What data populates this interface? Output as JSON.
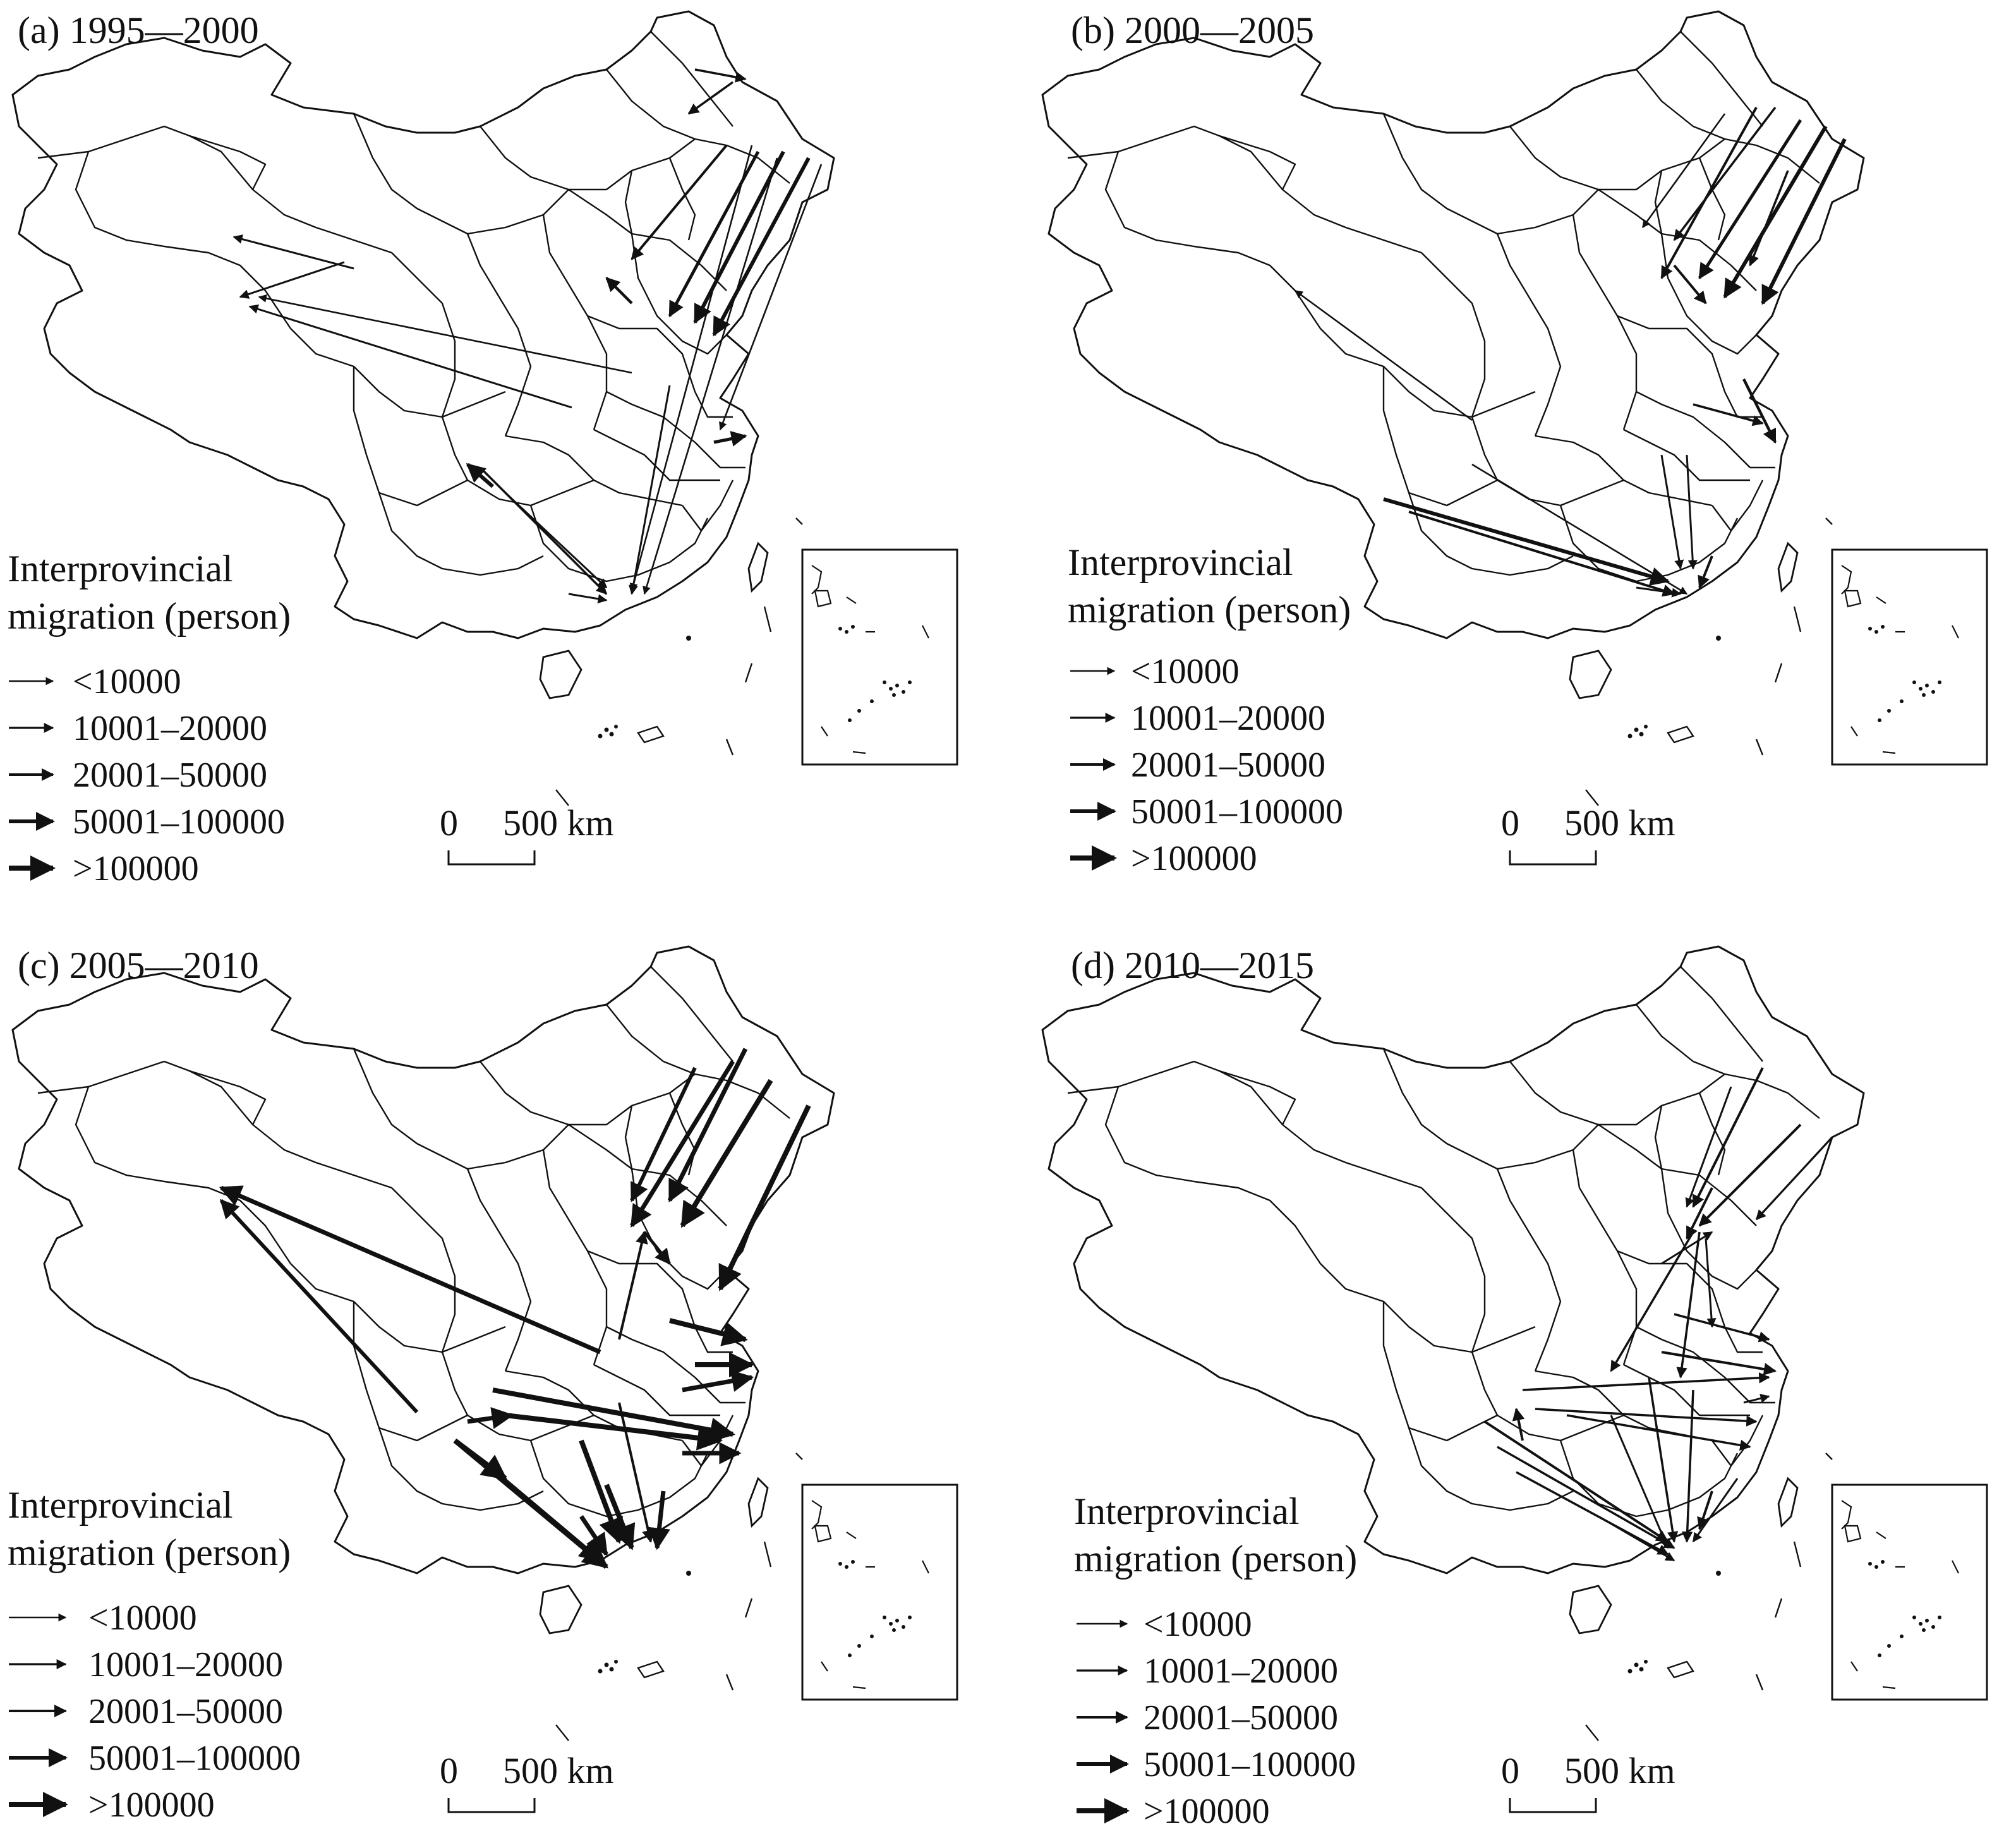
{
  "figure": {
    "panels": [
      {
        "title": "(a) 1995—2000",
        "legend_title_1": "Interprovincial",
        "legend_title_2": "migration (person)",
        "legend_classes": [
          "<10000",
          "10001–20000",
          "20001–50000",
          "50001–100000",
          ">100000"
        ],
        "scale_zero": "0",
        "scale_value": "500 km"
      },
      {
        "title": "(b) 2000—2005",
        "legend_title_1": "Interprovincial",
        "legend_title_2": "migration (person)",
        "legend_classes": [
          "<10000",
          "10001–20000",
          "20001–50000",
          "50001–100000",
          ">100000"
        ],
        "scale_zero": "0",
        "scale_value": "500 km"
      },
      {
        "title": "(c) 2005—2010",
        "legend_title_1": "Interprovincial",
        "legend_title_2": "migration (person)",
        "legend_classes": [
          "<10000",
          "10001–20000",
          "20001–50000",
          "50001–100000",
          ">100000"
        ],
        "scale_zero": "0",
        "scale_value": "500 km"
      },
      {
        "title": "(d) 2010—2015",
        "legend_title_1": "Interprovincial",
        "legend_title_2": "migration (person)",
        "legend_classes": [
          "<10000",
          "10001–20000",
          "20001–50000",
          "50001–100000",
          ">100000"
        ],
        "scale_zero": "0",
        "scale_value": "500 km"
      }
    ],
    "colors": {
      "line": "#111111",
      "background": "#ffffff"
    }
  }
}
